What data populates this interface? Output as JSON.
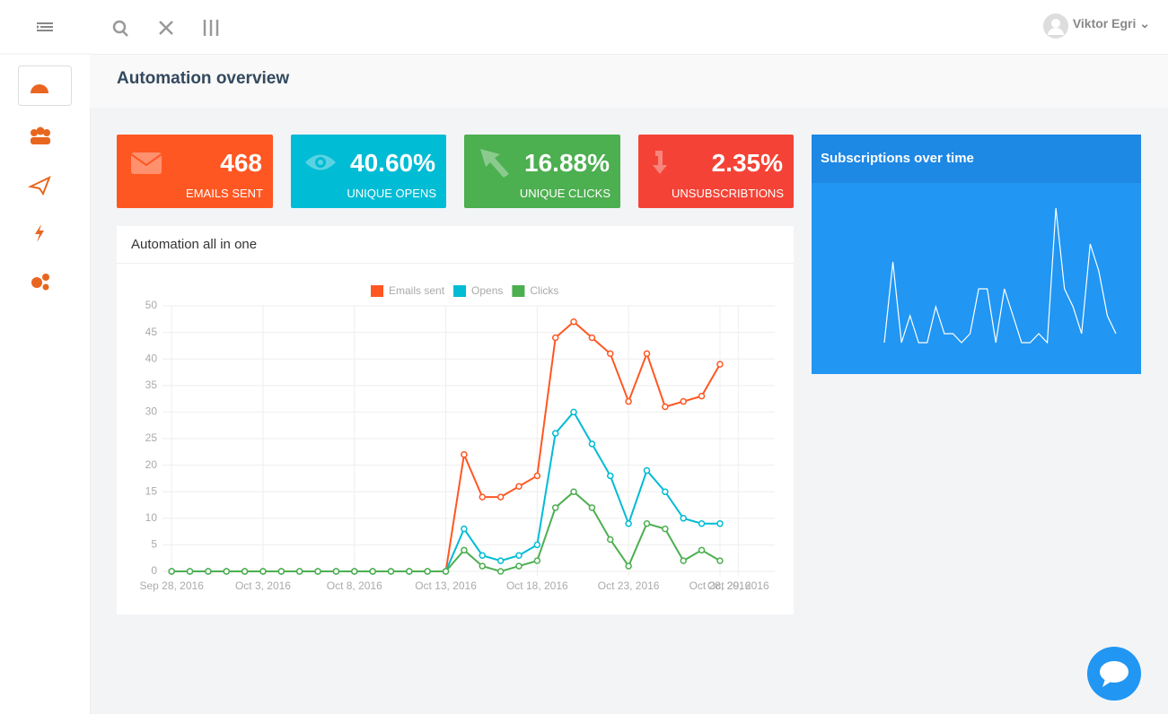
{
  "topbar": {
    "user": "Viktor Egri"
  },
  "page": {
    "title": "Automation overview"
  },
  "stats": [
    {
      "value": "468",
      "label": "EMAILS SENT",
      "color": "#ff5722"
    },
    {
      "value": "40.60%",
      "label": "UNIQUE OPENS",
      "color": "#00bcd4"
    },
    {
      "value": "16.88%",
      "label": "UNIQUE CLICKS",
      "color": "#4caf50"
    },
    {
      "value": "2.35%",
      "label": "UNSUBSCRIBTIONS",
      "color": "#f44336"
    }
  ],
  "chart": {
    "type": "line",
    "title": "Automation all in one",
    "x": [
      "2016-09-28",
      "2016-09-29",
      "2016-09-30",
      "2016-10-01",
      "2016-10-02",
      "2016-10-03",
      "2016-10-04",
      "2016-10-05",
      "2016-10-06",
      "2016-10-07",
      "2016-10-08",
      "2016-10-09",
      "2016-10-10",
      "2016-10-11",
      "2016-10-12",
      "2016-10-13",
      "2016-10-14",
      "2016-10-15",
      "2016-10-16",
      "2016-10-17",
      "2016-10-18",
      "2016-10-19",
      "2016-10-20",
      "2016-10-21",
      "2016-10-22",
      "2016-10-23",
      "2016-10-24",
      "2016-10-25",
      "2016-10-26",
      "2016-10-27",
      "2016-10-28"
    ],
    "series": [
      {
        "name": "Emails sent",
        "color": "#ff5722",
        "values": [
          0,
          0,
          0,
          0,
          0,
          0,
          0,
          0,
          0,
          0,
          0,
          0,
          0,
          0,
          0,
          0,
          22,
          14,
          14,
          16,
          18,
          44,
          47,
          44,
          41,
          32,
          41,
          31,
          32,
          33,
          39
        ]
      },
      {
        "name": "Opens",
        "color": "#00bcd4",
        "values": [
          0,
          0,
          0,
          0,
          0,
          0,
          0,
          0,
          0,
          0,
          0,
          0,
          0,
          0,
          0,
          0,
          8,
          3,
          2,
          3,
          5,
          26,
          30,
          24,
          18,
          9,
          19,
          15,
          10,
          9,
          9
        ]
      },
      {
        "name": "Clicks",
        "color": "#4caf50",
        "values": [
          0,
          0,
          0,
          0,
          0,
          0,
          0,
          0,
          0,
          0,
          0,
          0,
          0,
          0,
          0,
          0,
          4,
          1,
          0,
          1,
          2,
          12,
          15,
          12,
          6,
          1,
          9,
          8,
          2,
          4,
          2
        ]
      }
    ],
    "xlim": [
      "2016-09-27T12:00:00Z",
      "2016-10-31T00:00:00Z"
    ],
    "xticks": [
      {
        "value": "2016-09-28",
        "label": "Sep 28, 2016"
      },
      {
        "value": "2016-10-03",
        "label": "Oct 3, 2016"
      },
      {
        "value": "2016-10-08",
        "label": "Oct 8, 2016"
      },
      {
        "value": "2016-10-13",
        "label": "Oct 13, 2016"
      },
      {
        "value": "2016-10-18",
        "label": "Oct 18, 2016"
      },
      {
        "value": "2016-10-23",
        "label": "Oct 23, 2016"
      },
      {
        "value": "2016-10-28",
        "label": "Oct 28, 2016"
      },
      {
        "value": "2016-10-29",
        "label": "Oct 29, 2016"
      }
    ],
    "ylim": [
      0,
      50
    ],
    "yticks": [
      0,
      5,
      10,
      15,
      20,
      25,
      30,
      35,
      40,
      45,
      50
    ],
    "grid": true
  },
  "sparkline": {
    "type": "line",
    "title": "Subscriptions over time",
    "color": "#ffffff",
    "values": [
      2,
      11,
      2,
      5,
      2,
      2,
      6,
      3,
      3,
      2,
      3,
      8,
      8,
      2,
      8,
      5,
      2,
      2,
      3,
      2,
      17,
      8,
      6,
      3,
      13,
      10,
      5,
      3
    ]
  }
}
